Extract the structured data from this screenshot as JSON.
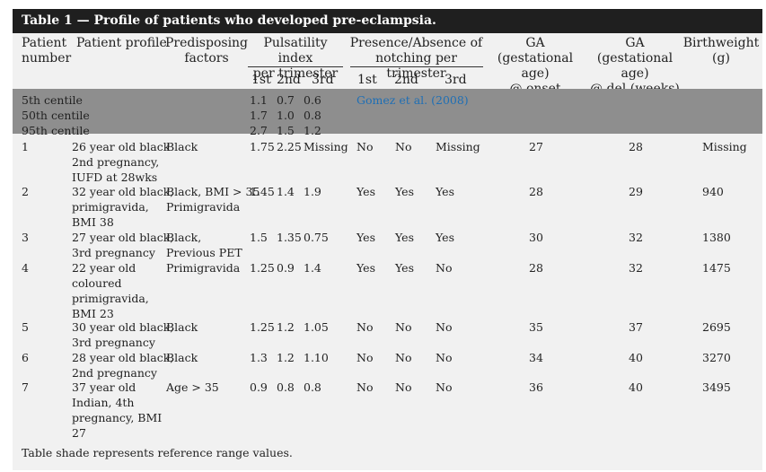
{
  "table": {
    "title": "Table 1 — Profile of patients who developed pre-eclampsia.",
    "headers": {
      "patient_number": "Patient\nnumber",
      "patient_profile": "Patient profile",
      "predisposing": "Predisposing\nfactors",
      "pi_group": "Pulsatility index\nper trimester",
      "notch_group": "Presence/Absence of\nnotching per trimester",
      "ga_onset": "GA\n(gestational age)\n@ onset (weeks)",
      "ga_del": "GA\n(gestational age)\n@ del (weeks)",
      "birthweight": "Birthweight\n(g)",
      "pi_sub": [
        "1st",
        "2nd",
        "3rd"
      ],
      "notch_sub": [
        "1st",
        "2nd",
        "3rd"
      ]
    },
    "reference_rows": [
      {
        "label": "5th centile",
        "pi": [
          "1.1",
          "0.7",
          "0.6"
        ],
        "source": "Gomez et al. (2008)"
      },
      {
        "label": "50th centile",
        "pi": [
          "1.7",
          "1.0",
          "0.8"
        ],
        "source": ""
      },
      {
        "label": "95th centile",
        "pi": [
          "2.7",
          "1.5",
          "1.2"
        ],
        "source": ""
      }
    ],
    "rows": [
      {
        "num": "1",
        "profile": "26 year old black\n2nd pregnancy,\nIUFD at 28wks",
        "factors": "Black",
        "pi": [
          "1.75",
          "2.25",
          "Missing"
        ],
        "notch": [
          "No",
          "No",
          "Missing"
        ],
        "ga_onset": "27",
        "ga_del": "28",
        "bw": "Missing"
      },
      {
        "num": "2",
        "profile": "32 year old black,\nprimigravida,\nBMI 38",
        "factors": "Black, BMI > 35\nPrimigravida",
        "pi": [
          "1.45",
          "1.4",
          "1.9"
        ],
        "notch": [
          "Yes",
          "Yes",
          "Yes"
        ],
        "ga_onset": "28",
        "ga_del": "29",
        "bw": "940"
      },
      {
        "num": "3",
        "profile": "27 year old black,\n3rd pregnancy",
        "factors": "Black,\nPrevious PET",
        "pi": [
          "1.5",
          "1.35",
          "0.75"
        ],
        "notch": [
          "Yes",
          "Yes",
          "Yes"
        ],
        "ga_onset": "30",
        "ga_del": "32",
        "bw": "1380"
      },
      {
        "num": "4",
        "profile": "22 year old\ncoloured\nprimigravida,\nBMI 23",
        "factors": "Primigravida",
        "pi": [
          "1.25",
          "0.9",
          "1.4"
        ],
        "notch": [
          "Yes",
          "Yes",
          "No"
        ],
        "ga_onset": "28",
        "ga_del": "32",
        "bw": "1475"
      },
      {
        "num": "5",
        "profile": "30 year old black,\n3rd pregnancy",
        "factors": "Black",
        "pi": [
          "1.25",
          "1.2",
          "1.05"
        ],
        "notch": [
          "No",
          "No",
          "No"
        ],
        "ga_onset": "35",
        "ga_del": "37",
        "bw": "2695"
      },
      {
        "num": "6",
        "profile": "28 year old black,\n2nd pregnancy",
        "factors": "Black",
        "pi": [
          "1.3",
          "1.2",
          "1.10"
        ],
        "notch": [
          "No",
          "No",
          "No"
        ],
        "ga_onset": "34",
        "ga_del": "40",
        "bw": "3270"
      },
      {
        "num": "7",
        "profile": "37 year old\nIndian, 4th\npregnancy, BMI\n27",
        "factors": "Age > 35",
        "pi": [
          "0.9",
          "0.8",
          "0.8"
        ],
        "notch": [
          "No",
          "No",
          "No"
        ],
        "ga_onset": "36",
        "ga_del": "40",
        "bw": "3495"
      }
    ],
    "footnote": "Table shade represents reference range values.",
    "colors": {
      "title_bg": "#1f1f1f",
      "shade": "#8e8e8e",
      "link": "#1f6fb5",
      "body_bg": "#f1f1f1"
    }
  }
}
